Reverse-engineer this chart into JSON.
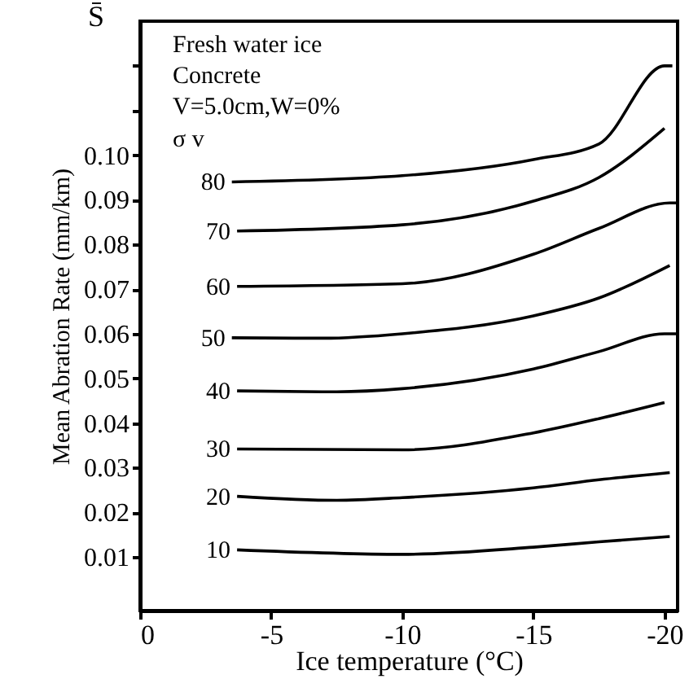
{
  "chart_data": {
    "type": "line",
    "xlabel": "Ice temperature (°C)",
    "ylabel": "Mean Abration Rate (mm/km)",
    "legend_title": "σ v",
    "annotations": [
      "S̄",
      "Fresh water ice",
      "Concrete",
      "V=5.0cm,W=0%"
    ],
    "xlim": [
      0,
      -20.5
    ],
    "xticks": [
      0,
      -5,
      -10,
      -15,
      -20
    ],
    "ylim": [
      -0.002,
      0.13
    ],
    "yticks": [
      0.01,
      0.02,
      0.03,
      0.04,
      0.05,
      0.06,
      0.07,
      0.08,
      0.09,
      {
        "value": 0.1,
        "label": "0.10"
      },
      {
        "value": 0.11,
        "label": null
      },
      {
        "value": 0.12,
        "label": null
      }
    ],
    "grid": false,
    "legend": false,
    "line_style": "solid",
    "series": [
      {
        "name": "80",
        "color": "#000000",
        "x": [
          -3.5,
          -10,
          -15,
          -17.5,
          -20,
          -20.3
        ],
        "values": [
          0.094,
          0.0954,
          0.099,
          0.1025,
          0.12,
          0.12
        ]
      },
      {
        "name": "70",
        "color": "#000000",
        "x": [
          -3.7,
          -10,
          -15,
          -17.5,
          -20
        ],
        "values": [
          0.083,
          0.0844,
          0.0897,
          0.095,
          0.106
        ]
      },
      {
        "name": "60",
        "color": "#000000",
        "x": [
          -3.7,
          -10,
          -15,
          -17.5,
          -20.2,
          -20.5
        ],
        "values": [
          0.0706,
          0.0712,
          0.0778,
          0.0836,
          0.0893,
          0.0893
        ]
      },
      {
        "name": "50",
        "color": "#000000",
        "x": [
          -3.5,
          -7,
          -10,
          -15,
          -17.5,
          -20.2
        ],
        "values": [
          0.0591,
          0.059,
          0.06,
          0.064,
          0.068,
          0.0753
        ]
      },
      {
        "name": "40",
        "color": "#000000",
        "x": [
          -3.7,
          -7.5,
          -10,
          -15,
          -17.5,
          -20,
          -20.5
        ],
        "values": [
          0.0472,
          0.047,
          0.0477,
          0.0521,
          0.056,
          0.06,
          0.06
        ]
      },
      {
        "name": "30",
        "color": "#000000",
        "x": [
          -3.7,
          -10,
          -15,
          -17.5,
          -20
        ],
        "values": [
          0.0342,
          0.034,
          0.0378,
          0.041,
          0.0446
        ]
      },
      {
        "name": "20",
        "color": "#000000",
        "x": [
          -3.7,
          -7.5,
          -10,
          -15,
          -17.5,
          -20.2
        ],
        "values": [
          0.0236,
          0.0227,
          0.0233,
          0.0255,
          0.0273,
          0.0289
        ]
      },
      {
        "name": "10",
        "color": "#000000",
        "x": [
          -3.7,
          -10,
          -15,
          -17.5,
          -20.2
        ],
        "values": [
          0.0116,
          0.0106,
          0.0122,
          0.0134,
          0.0146
        ]
      }
    ]
  }
}
